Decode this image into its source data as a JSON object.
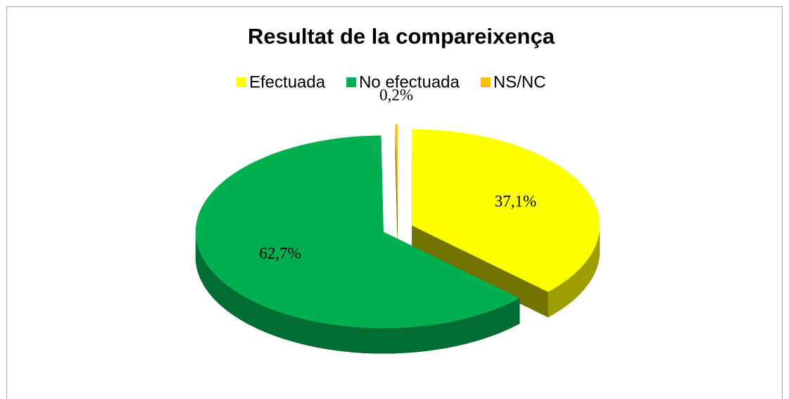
{
  "chart_data": {
    "type": "pie",
    "title": "Resultat de la compareixença",
    "categories": [
      "Efectuada",
      "No efectuada",
      "NS/NC"
    ],
    "values": [
      37.1,
      62.7,
      0.2
    ],
    "value_labels": [
      "37,1%",
      "62,7%",
      "0,2%"
    ],
    "colors": [
      "#ffff00",
      "#00b050",
      "#ffc000"
    ],
    "legend": "top"
  }
}
